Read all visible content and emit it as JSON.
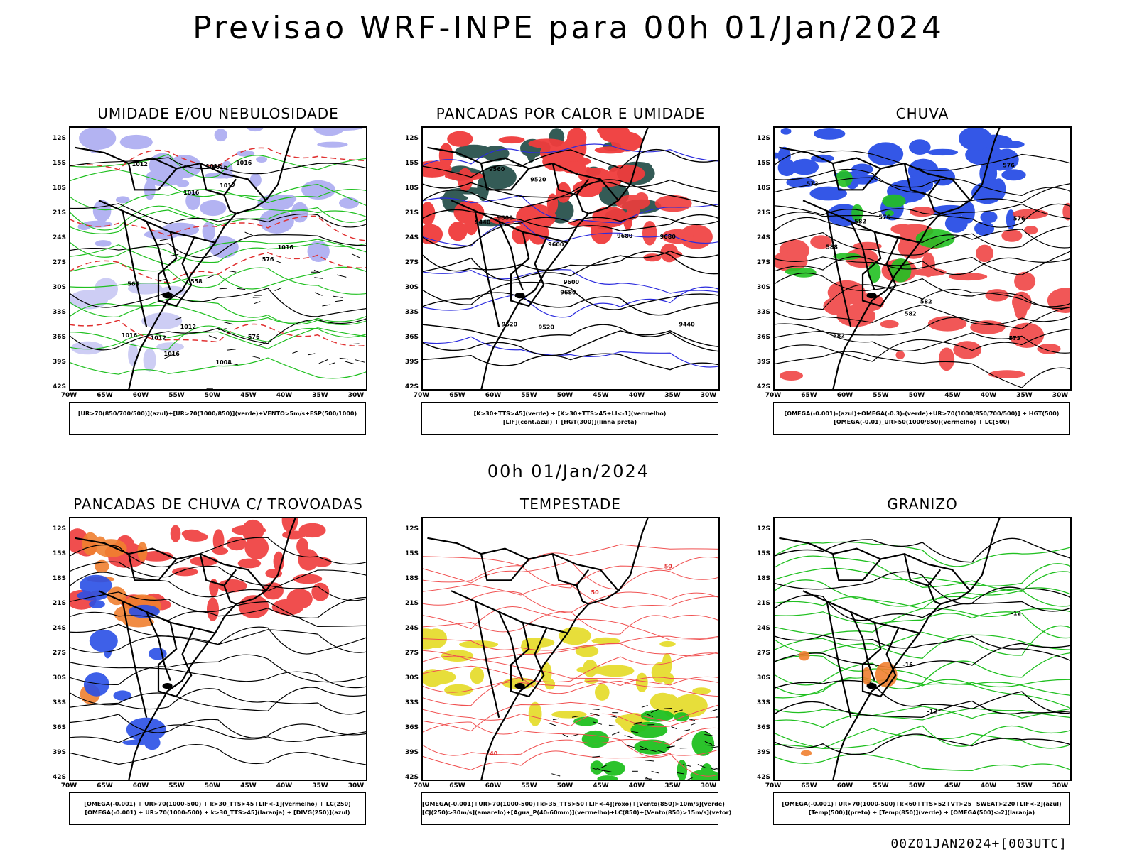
{
  "main_title": "Previsao WRF-INPE  para 00h 01/Jan/2024",
  "mid_title": "00h 01/Jan/2024",
  "footer": "00Z01JAN2024+[003UTC]",
  "lat_labels": [
    "12S",
    "15S",
    "18S",
    "21S",
    "24S",
    "27S",
    "30S",
    "33S",
    "36S",
    "39S",
    "42S"
  ],
  "lon_labels": [
    "70W",
    "65W",
    "60W",
    "55W",
    "50W",
    "45W",
    "40W",
    "35W",
    "30W"
  ],
  "panels": [
    {
      "title": "UMIDADE E/OU NEBULOSIDADE",
      "caption": [
        "[UR>70(850/700/500)](azul)+[UR>70(1000/850)](verde)+VENTO>5m/s+ESP(500/1000)"
      ],
      "labels": [
        "1012",
        "1012",
        "1012",
        "1012",
        "1008",
        "1016",
        "1016",
        "1016",
        "1016",
        "1016",
        "1016",
        "1012",
        "564",
        "558",
        "576",
        "576"
      ]
    },
    {
      "title": "PANCADAS POR CALOR E UMIDADE",
      "caption": [
        "[K>30+TTS>45](verde) + [K>30+TTS>45+LI<-1](vermelho)",
        "[LIF](cont.azul) + [HGT(300)](linha preta)"
      ],
      "labels": [
        "9680",
        "9680",
        "9600",
        "9560",
        "9680",
        "9600",
        "9520",
        "9440",
        "9600",
        "9520",
        "9440",
        "9520"
      ]
    },
    {
      "title": "CHUVA",
      "caption": [
        "[OMEGA(-0.001)-(azul)+OMEGA(-0.3)-(verde)+UR>70(1000/850/700/500)] + HGT(500)",
        "[OMEGA(-0.01)_UR>50(1000/850)(vermelho) + LC(500)"
      ],
      "labels": [
        "588",
        "582",
        "576",
        "582",
        "573",
        "576",
        "576",
        "573",
        "582",
        "582"
      ]
    },
    {
      "title": "PANCADAS DE CHUVA C/ TROVOADAS",
      "caption": [
        "[OMEGA(-0.001) + UR>70(1000-500) + k>30_TTS>45+LIF<-1](vermelho) + LC(250)",
        "[OMEGA(-0.001) + UR>70(1000-500) + k>30_TTS>45](laranja) + [DIVG(250)](azul)"
      ],
      "labels": []
    },
    {
      "title": "TEMPESTADE",
      "caption": [
        "[OMEGA(-0.001)+UR>70(1000-500)+k>35_TTS>50+LIF<-4](roxo)+[Vento(850)>10m/s](verde)",
        "[CJ(250)>30m/s](amarelo)+[Agua_P(40-60mm)](vermelho)+LC(850)+[Vento(850)>15m/s](vetor)"
      ],
      "labels": [
        "50",
        "50",
        "40"
      ]
    },
    {
      "title": "GRANIZO",
      "caption": [
        "[OMEGA(-0.001)+UR>70(1000-500)+k<60+TTS>52+VT>25+SWEAT>220+LIF<-2](azul)",
        "[Temp(500)](preto) + [Temp(850)](verde) + [OMEGA(500)<-2](laranja)"
      ],
      "labels": [
        "-12",
        "-12",
        "-16"
      ]
    }
  ]
}
